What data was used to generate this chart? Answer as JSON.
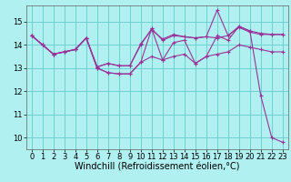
{
  "bg_color": "#b0f0f0",
  "grid_color": "#70d0d0",
  "line_color": "#993399",
  "xlabel": "Windchill (Refroidissement éolien,°C)",
  "xlabel_fontsize": 7,
  "tick_fontsize": 6,
  "ylim": [
    9.5,
    15.7
  ],
  "xlim": [
    -0.5,
    23.5
  ],
  "yticks": [
    10,
    11,
    12,
    13,
    14,
    15
  ],
  "xticks": [
    0,
    1,
    2,
    3,
    4,
    5,
    6,
    7,
    8,
    9,
    10,
    11,
    12,
    13,
    14,
    15,
    16,
    17,
    18,
    19,
    20,
    21,
    22,
    23
  ],
  "series": [
    [
      14.4,
      14.0,
      13.6,
      13.7,
      13.8,
      14.3,
      13.0,
      12.8,
      12.75,
      12.75,
      13.25,
      13.5,
      13.35,
      13.5,
      13.6,
      13.2,
      13.5,
      13.6,
      13.7,
      14.0,
      13.9,
      13.8,
      13.7,
      13.7
    ],
    [
      14.4,
      14.0,
      13.6,
      13.7,
      13.8,
      14.3,
      13.05,
      13.2,
      13.1,
      13.1,
      14.0,
      14.7,
      14.2,
      14.4,
      14.35,
      14.3,
      14.35,
      15.5,
      14.4,
      14.8,
      14.6,
      14.5,
      14.45,
      14.45
    ],
    [
      14.4,
      14.0,
      13.6,
      13.7,
      13.8,
      14.3,
      13.05,
      13.2,
      13.1,
      13.1,
      14.05,
      14.65,
      14.25,
      14.45,
      14.35,
      14.3,
      14.35,
      14.3,
      14.4,
      14.75,
      14.55,
      14.45,
      14.45,
      14.45
    ],
    [
      14.4,
      14.0,
      13.6,
      13.7,
      13.8,
      14.3,
      13.0,
      12.8,
      12.75,
      12.75,
      13.25,
      14.7,
      13.35,
      14.1,
      14.2,
      13.2,
      13.5,
      14.4,
      14.2,
      14.8,
      14.6,
      11.8,
      10.0,
      9.8
    ]
  ]
}
